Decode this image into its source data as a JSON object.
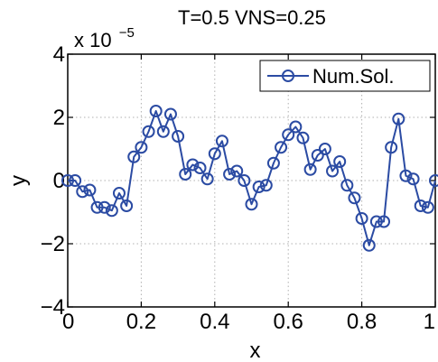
{
  "chart_data": {
    "type": "line",
    "title": "T=0.5 VNS=0.25",
    "xlabel": "x",
    "ylabel": "y",
    "xlim": [
      0,
      1
    ],
    "ylim": [
      -4,
      4
    ],
    "y_multiplier": "x 10",
    "y_exponent": "−5",
    "xticks": [
      0,
      0.2,
      0.4,
      0.6,
      0.8,
      1
    ],
    "xtick_labels": [
      "0",
      "0.2",
      "0.4",
      "0.6",
      "0.8",
      "1"
    ],
    "yticks": [
      -4,
      -2,
      0,
      2,
      4
    ],
    "ytick_labels": [
      "−4",
      "−2",
      "0",
      "2",
      "4"
    ],
    "grid": true,
    "legend_position": "top-right",
    "line_color": "#2b4ba3",
    "series": [
      {
        "name": "Num.Sol.",
        "x": [
          0,
          0.02,
          0.04,
          0.06,
          0.08,
          0.1,
          0.12,
          0.14,
          0.16,
          0.18,
          0.2,
          0.22,
          0.24,
          0.26,
          0.28,
          0.3,
          0.32,
          0.34,
          0.36,
          0.38,
          0.4,
          0.42,
          0.44,
          0.46,
          0.48,
          0.5,
          0.52,
          0.54,
          0.56,
          0.58,
          0.6,
          0.62,
          0.64,
          0.66,
          0.68,
          0.7,
          0.72,
          0.74,
          0.76,
          0.78,
          0.8,
          0.82,
          0.84,
          0.86,
          0.88,
          0.9,
          0.92,
          0.94,
          0.96,
          0.98,
          1
        ],
        "y": [
          0,
          0,
          -0.35,
          -0.3,
          -0.85,
          -0.85,
          -0.95,
          -0.4,
          -0.8,
          0.75,
          1.05,
          1.55,
          2.2,
          1.55,
          2.1,
          1.4,
          0.2,
          0.5,
          0.4,
          0.05,
          0.85,
          1.25,
          0.2,
          0.3,
          0,
          -0.75,
          -0.2,
          -0.15,
          0.55,
          1.05,
          1.45,
          1.7,
          1.35,
          0.35,
          0.8,
          1.0,
          0.3,
          0.6,
          -0.15,
          -0.55,
          -1.2,
          -2.05,
          -1.3,
          -1.3,
          1.05,
          1.95,
          0.15,
          0.05,
          -0.8,
          -0.85,
          0
        ]
      }
    ]
  }
}
